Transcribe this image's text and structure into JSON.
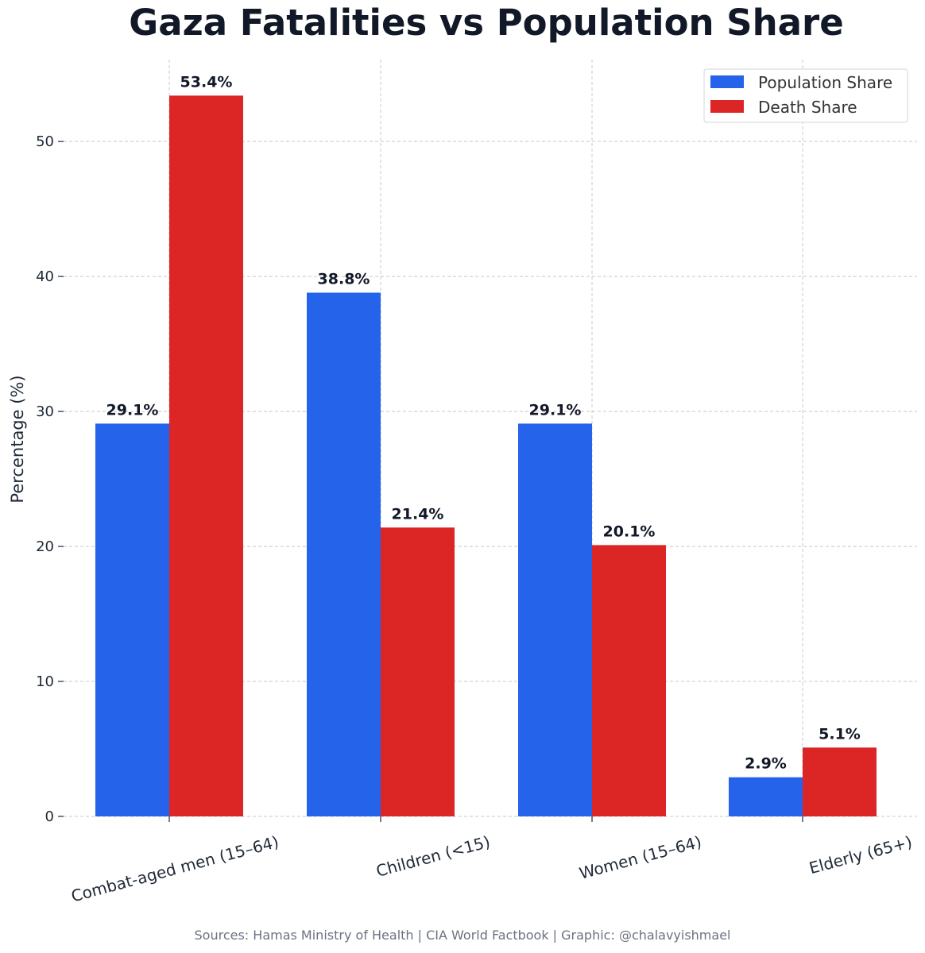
{
  "chart_data": {
    "type": "bar",
    "title": "Gaza Fatalities vs Population Share",
    "ylabel": "Percentage (%)",
    "xlabel": "",
    "categories": [
      "Combat-aged men (15–64)",
      "Children (<15)",
      "Women (15–64)",
      "Elderly (65+)"
    ],
    "series": [
      {
        "name": "Population Share",
        "color": "#2563eb",
        "values": [
          29.1,
          38.8,
          29.1,
          2.9
        ],
        "labels": [
          "29.1%",
          "38.8%",
          "29.1%",
          "2.9%"
        ]
      },
      {
        "name": "Death Share",
        "color": "#dc2626",
        "values": [
          53.4,
          21.4,
          20.1,
          5.1
        ],
        "labels": [
          "53.4%",
          "21.4%",
          "20.1%",
          "5.1%"
        ]
      }
    ],
    "yticks": [
      0,
      10,
      20,
      30,
      40,
      50
    ],
    "ylim": [
      0,
      56.07
    ],
    "grid": true,
    "legend_position": "top-right"
  },
  "footer": {
    "source": "Sources: Hamas Ministry of Health | CIA World Factbook | Graphic: @chalavyishmael"
  }
}
